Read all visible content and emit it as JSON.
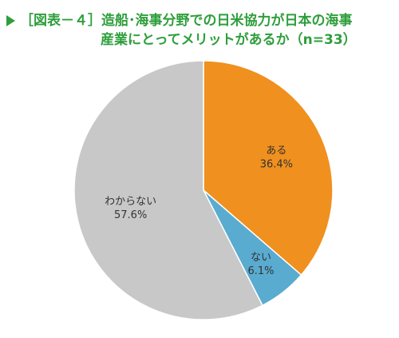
{
  "header": {
    "title_line1": "［図表－４］造船･海事分野での日米協力が日本の海事",
    "title_line2": "産業にとってメリットがあるか（n=33）"
  },
  "colors": {
    "title": "#2e9e3c",
    "slice_aru": "#f0901e",
    "slice_nai": "#5aabd0",
    "slice_wakaranai": "#c8c8c8"
  },
  "chart_data": {
    "type": "pie",
    "title": "［図表－４］造船･海事分野での日米協力が日本の海事産業にとってメリットがあるか（n=33）",
    "start_angle": "12 o'clock, clockwise",
    "slices": [
      {
        "label": "ある",
        "value": 36.4,
        "value_label": "36.4%",
        "color": "#f0901e"
      },
      {
        "label": "ない",
        "value": 6.1,
        "value_label": "6.1%",
        "color": "#5aabd0"
      },
      {
        "label": "わからない",
        "value": 57.6,
        "value_label": "57.6%",
        "color": "#c8c8c8"
      }
    ]
  }
}
